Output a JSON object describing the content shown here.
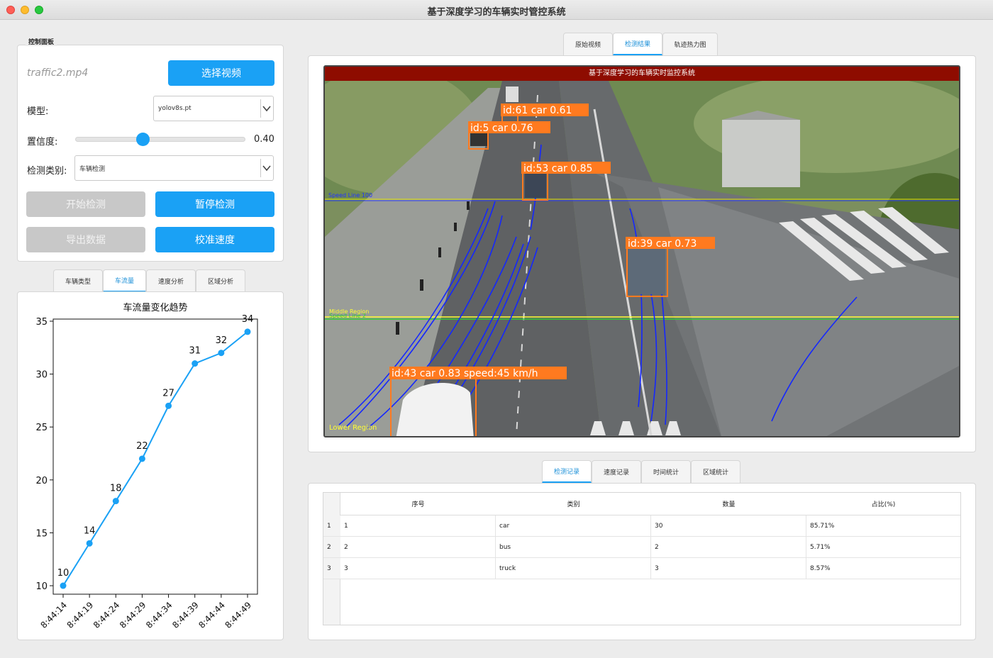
{
  "window": {
    "title": "基于深度学习的车辆实时管控系统"
  },
  "control_panel": {
    "title": "控制面板",
    "file_name": "traffic2.mp4",
    "select_video_label": "选择视频",
    "model_label": "模型:",
    "model_value": "yolov8s.pt",
    "confidence_label": "置信度:",
    "confidence_value": "0.40",
    "confidence": 0.4,
    "category_label": "检测类别:",
    "category_value": "车辆检测",
    "start_label": "开始检测",
    "pause_label": "暂停检测",
    "export_label": "导出数据",
    "calibrate_label": "校准速度"
  },
  "chart_tabs": [
    "车辆类型",
    "车流量",
    "速度分析",
    "区域分析"
  ],
  "chart_tab_active": 1,
  "chart_data": {
    "type": "line",
    "title": "车流量变化趋势",
    "categories": [
      "8:44:14",
      "8:44:19",
      "8:44:24",
      "8:44:29",
      "8:44:34",
      "8:44:39",
      "8:44:44",
      "8:44:49"
    ],
    "values": [
      10,
      14,
      18,
      22,
      27,
      31,
      32,
      34
    ],
    "ylim": [
      9.2,
      35.2
    ],
    "yticks": [
      10,
      15,
      20,
      25,
      30,
      35
    ],
    "data_labels": true,
    "color": "#1aa1f5"
  },
  "video_tabs": [
    "原始视频",
    "检测结果",
    "轨迹热力图"
  ],
  "video_tab_active": 1,
  "video": {
    "banner": "基于深度学习的车辆实时监控系统",
    "speed_line_label": "Speed Line 100",
    "middle_region_label": "Middle Region",
    "speed_line2_label": "Speed Line 2",
    "lower_region_label": "Lower Region",
    "detections": [
      {
        "label": "id:61 car 0.61"
      },
      {
        "label": "id:5 car 0.76"
      },
      {
        "label": "id:53 car 0.85"
      },
      {
        "label": "id:39 car 0.73"
      },
      {
        "label": "id:43 car 0.83 speed:45 km/h"
      }
    ]
  },
  "record_tabs": [
    "检测记录",
    "速度记录",
    "时间统计",
    "区域统计"
  ],
  "record_tab_active": 0,
  "table": {
    "headers": [
      "序号",
      "类别",
      "数量",
      "占比(%)"
    ],
    "rows": [
      {
        "index": "1",
        "seq": "1",
        "category": "car",
        "count": "30",
        "ratio": "85.71%"
      },
      {
        "index": "2",
        "seq": "2",
        "category": "bus",
        "count": "2",
        "ratio": "5.71%"
      },
      {
        "index": "3",
        "seq": "3",
        "category": "truck",
        "count": "3",
        "ratio": "8.57%"
      }
    ]
  }
}
